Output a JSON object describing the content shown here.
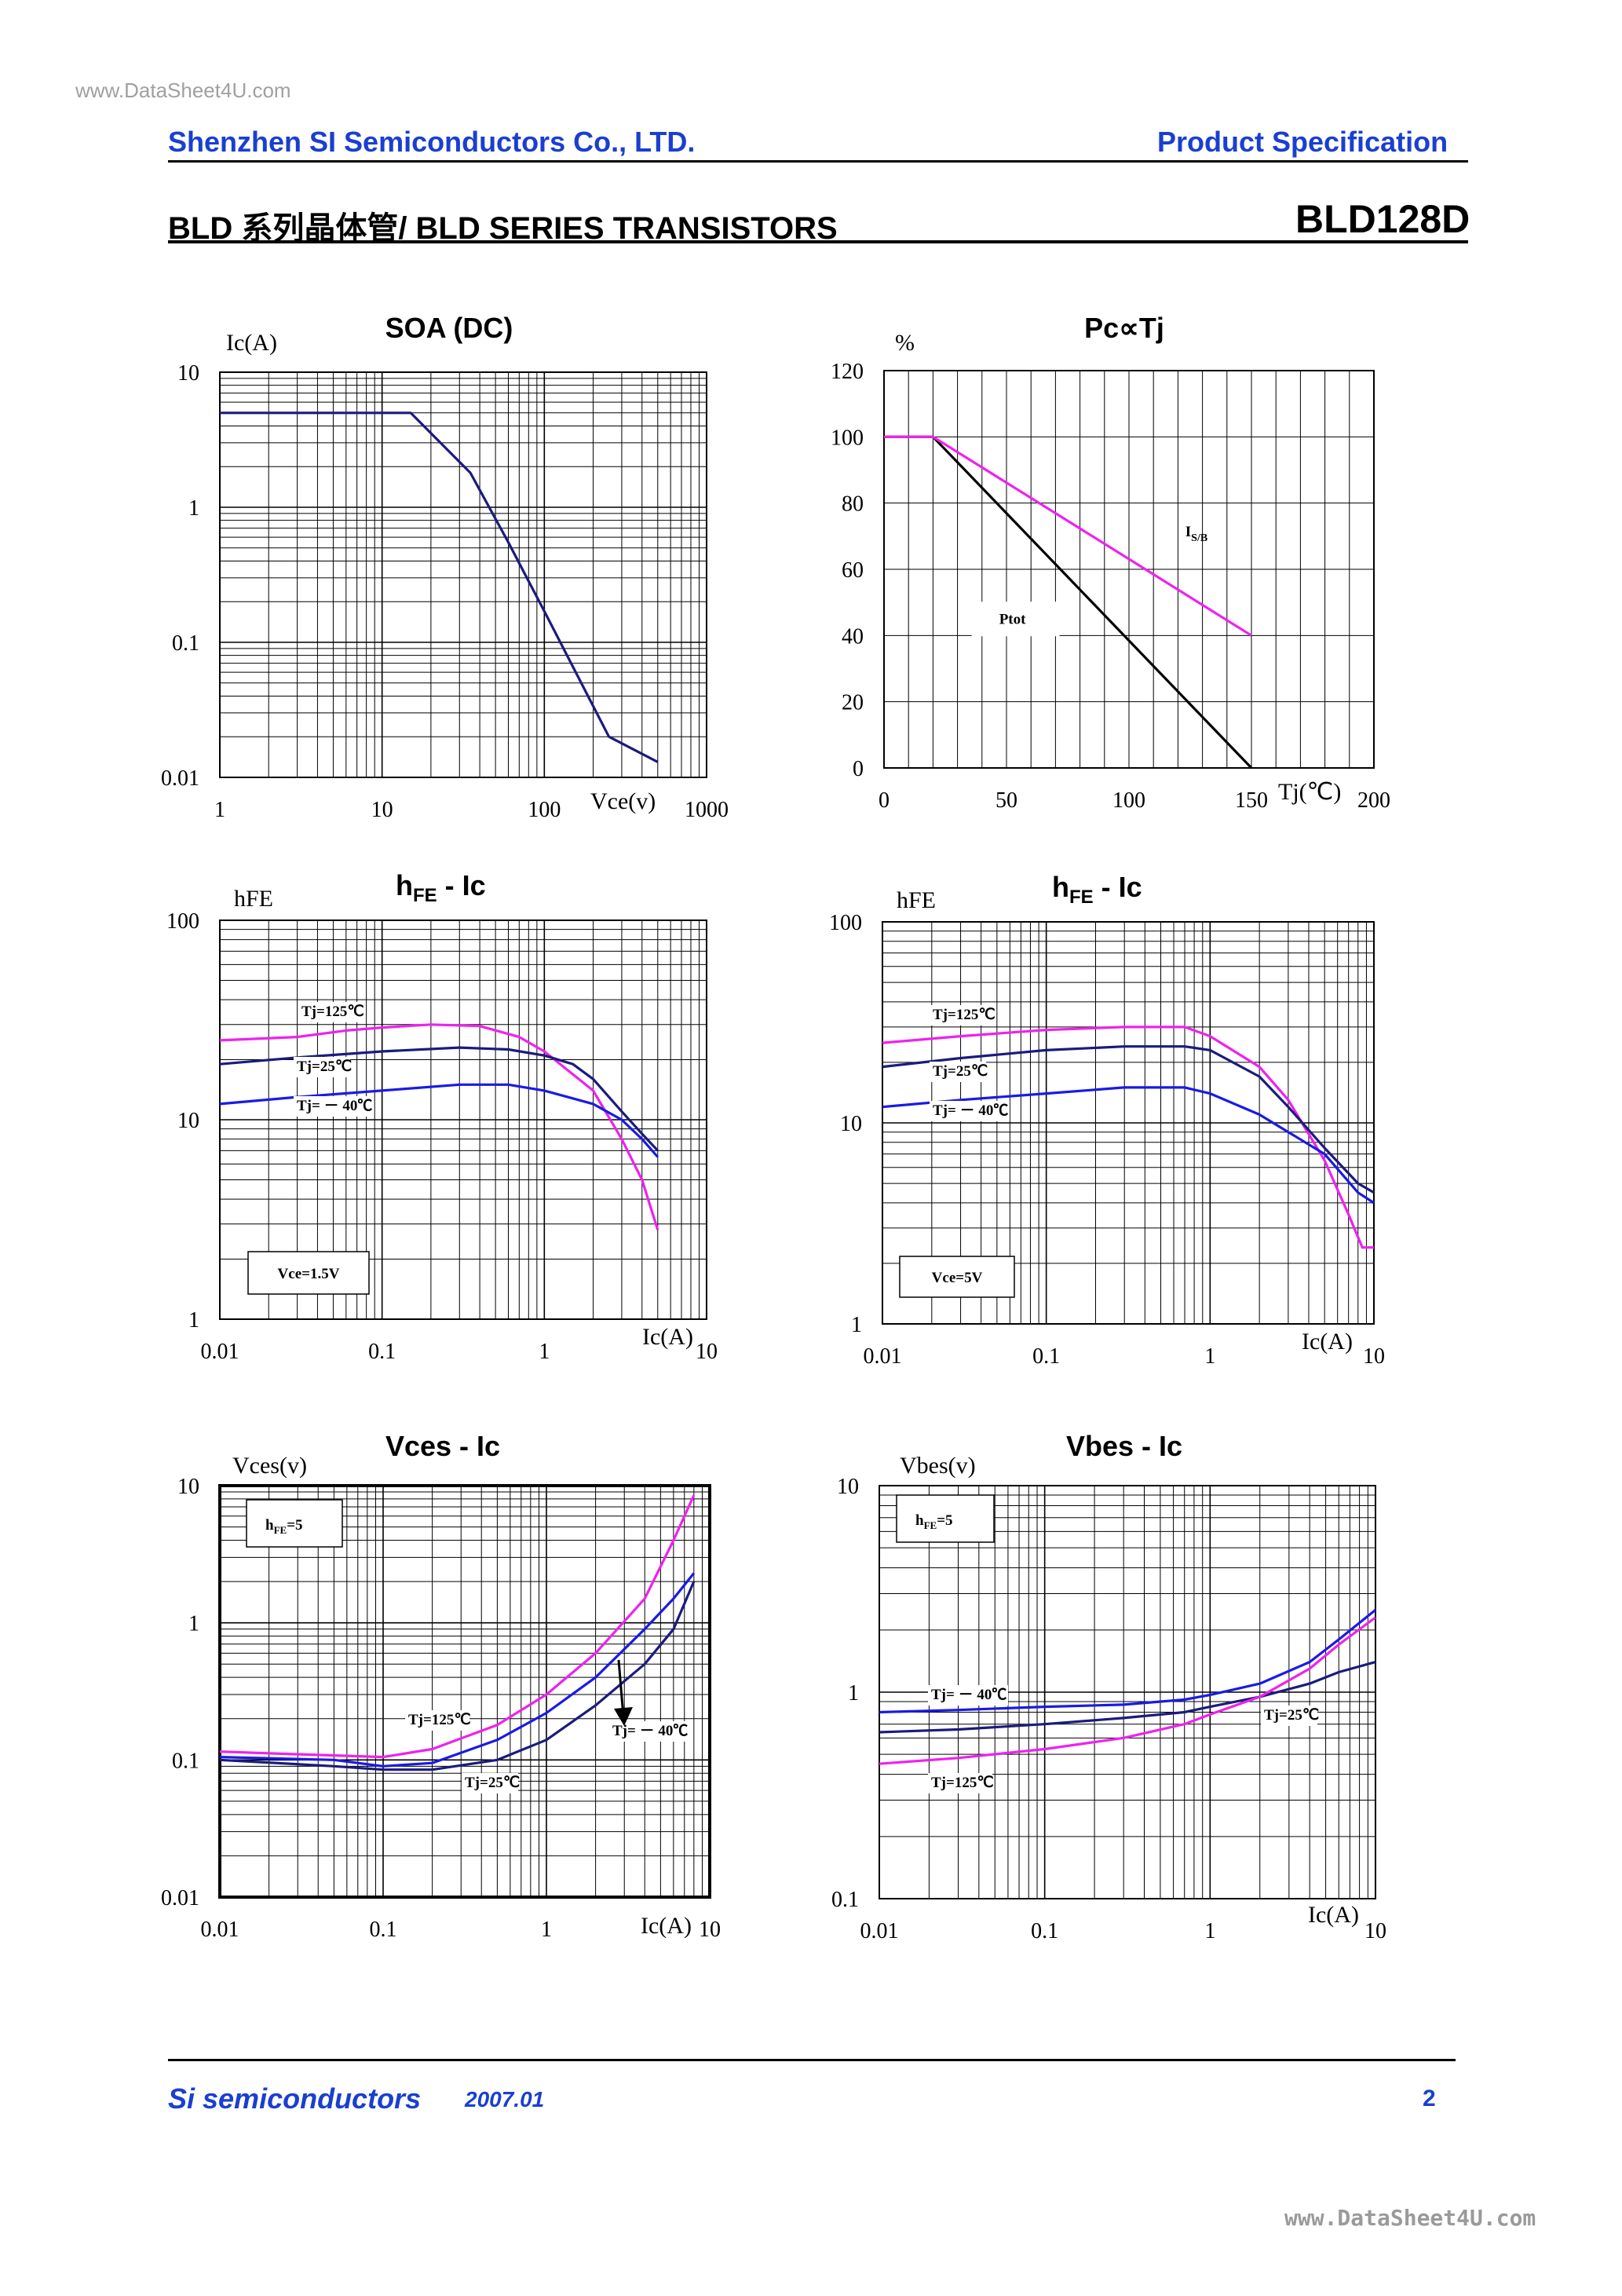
{
  "header": {
    "watermark_top": "www.DataSheet4U.com",
    "company": "Shenzhen SI Semiconductors Co., LTD.",
    "spec_label": "Product Specification",
    "series_title": "BLD 系列晶体管/ BLD SERIES TRANSISTORS",
    "part_number": "BLD128D"
  },
  "footer": {
    "company": "Si semiconductors",
    "date": "2007.01",
    "page": "2",
    "watermark_bottom": "www.DataSheet4U.com"
  },
  "colors": {
    "navy": "#1b1b7e",
    "blue": "#1a1ae6",
    "magenta": "#ee22ee",
    "black": "#000000",
    "brand": "#1a3fd0"
  },
  "chart_data": [
    {
      "type": "line",
      "id": "soa",
      "title": "SOA (DC)",
      "scale": "loglog",
      "ylabel": "Ic(A)",
      "xlabel": "Vce(v)",
      "xlim": [
        1,
        1000
      ],
      "ylim": [
        0.01,
        10
      ],
      "xticks": [
        1,
        10,
        100,
        1000
      ],
      "xtick_labels": [
        "1",
        "10",
        "100",
        "1000"
      ],
      "yticks": [
        0.01,
        0.1,
        1,
        10
      ],
      "ytick_labels": [
        "0.01",
        "0.1",
        "1",
        "10"
      ],
      "series": [
        {
          "name": "SOA",
          "color": "navy",
          "points": [
            [
              1,
              5
            ],
            [
              15,
              5
            ],
            [
              35,
              1.8
            ],
            [
              60,
              0.55
            ],
            [
              100,
              0.17
            ],
            [
              250,
              0.02
            ],
            [
              500,
              0.013
            ]
          ]
        }
      ]
    },
    {
      "type": "line",
      "id": "pc",
      "title": "Pc∝Tj",
      "scale": "linear",
      "ylabel": "%",
      "xlabel": "Tj(℃)",
      "xlim": [
        0,
        200
      ],
      "ylim": [
        0,
        120
      ],
      "xticks": [
        0,
        50,
        100,
        150,
        200
      ],
      "xtick_labels": [
        "0",
        "50",
        "100",
        "150",
        "200"
      ],
      "yticks": [
        0,
        20,
        40,
        60,
        80,
        100,
        120
      ],
      "ytick_labels": [
        "0",
        "20",
        "40",
        "60",
        "80",
        "100",
        "120"
      ],
      "series": [
        {
          "name": "Ptot",
          "color": "black",
          "points": [
            [
              0,
              100
            ],
            [
              20,
              100
            ],
            [
              150,
              0
            ]
          ]
        },
        {
          "name": "I_S/B",
          "color": "magenta",
          "points": [
            [
              0,
              100
            ],
            [
              20,
              100
            ],
            [
              150,
              40
            ]
          ]
        }
      ],
      "annotations": [
        {
          "text": "Ptot",
          "x": 55,
          "y": 45
        },
        {
          "text": "IS/B",
          "x": 123,
          "y": 70,
          "sub": "S/B",
          "main": "I"
        }
      ]
    },
    {
      "type": "line",
      "id": "hfe1",
      "title": "hFE - Ic",
      "scale": "loglog",
      "ylabel": "hFE",
      "xlabel": "Ic(A)",
      "xlim": [
        0.01,
        10
      ],
      "ylim": [
        1,
        100
      ],
      "xticks": [
        0.01,
        0.1,
        1,
        10
      ],
      "xtick_labels": [
        "0.01",
        "0.1",
        "1",
        "10"
      ],
      "yticks": [
        1,
        10,
        100
      ],
      "ytick_labels": [
        "1",
        "10",
        "100"
      ],
      "series": [
        {
          "name": "Tj=125℃",
          "color": "magenta",
          "points": [
            [
              0.01,
              25
            ],
            [
              0.03,
              26
            ],
            [
              0.06,
              28
            ],
            [
              0.1,
              29
            ],
            [
              0.2,
              30
            ],
            [
              0.4,
              29.5
            ],
            [
              0.7,
              26
            ],
            [
              1,
              22
            ],
            [
              2,
              14
            ],
            [
              3,
              8
            ],
            [
              4,
              5
            ],
            [
              5,
              2.8
            ]
          ]
        },
        {
          "name": "Tj=25℃",
          "color": "navy",
          "points": [
            [
              0.01,
              19
            ],
            [
              0.03,
              20.5
            ],
            [
              0.1,
              22
            ],
            [
              0.3,
              23
            ],
            [
              0.6,
              22.5
            ],
            [
              1,
              21
            ],
            [
              1.5,
              19
            ],
            [
              2,
              16
            ],
            [
              3,
              11
            ],
            [
              4,
              8.5
            ],
            [
              5,
              7
            ]
          ]
        },
        {
          "name": "Tj=-40℃",
          "color": "blue",
          "points": [
            [
              0.01,
              12
            ],
            [
              0.03,
              13
            ],
            [
              0.1,
              14
            ],
            [
              0.3,
              15
            ],
            [
              0.6,
              15
            ],
            [
              1,
              14
            ],
            [
              2,
              12
            ],
            [
              3,
              10
            ],
            [
              4,
              8
            ],
            [
              5,
              6.5
            ]
          ]
        }
      ],
      "labels": [
        "Tj=125℃",
        "Tj=25℃",
        "Tj= － 40℃"
      ],
      "condition": "Vce=1.5V"
    },
    {
      "type": "line",
      "id": "hfe2",
      "title": "hFE - Ic",
      "scale": "loglog",
      "ylabel": "hFE",
      "xlabel": "Ic(A)",
      "xlim": [
        0.01,
        10
      ],
      "ylim": [
        1,
        100
      ],
      "xticks": [
        0.01,
        0.1,
        1,
        10
      ],
      "xtick_labels": [
        "0.01",
        "0.1",
        "1",
        "10"
      ],
      "yticks": [
        1,
        10,
        100
      ],
      "ytick_labels": [
        "1",
        "10",
        "100"
      ],
      "series": [
        {
          "name": "Tj=125℃",
          "color": "magenta",
          "points": [
            [
              0.01,
              25
            ],
            [
              0.03,
              27
            ],
            [
              0.1,
              29
            ],
            [
              0.3,
              30
            ],
            [
              0.7,
              30
            ],
            [
              1,
              27
            ],
            [
              2,
              19
            ],
            [
              3,
              13
            ],
            [
              5,
              6.5
            ],
            [
              7,
              3.5
            ],
            [
              8.5,
              2.4
            ],
            [
              10,
              2.4
            ]
          ]
        },
        {
          "name": "Tj=25℃",
          "color": "navy",
          "points": [
            [
              0.01,
              19
            ],
            [
              0.03,
              21
            ],
            [
              0.1,
              23
            ],
            [
              0.3,
              24
            ],
            [
              0.7,
              24
            ],
            [
              1,
              23
            ],
            [
              2,
              17
            ],
            [
              3,
              12
            ],
            [
              5,
              7.5
            ],
            [
              8,
              5
            ],
            [
              10,
              4.5
            ]
          ]
        },
        {
          "name": "Tj=-40℃",
          "color": "blue",
          "points": [
            [
              0.01,
              12
            ],
            [
              0.03,
              13
            ],
            [
              0.1,
              14
            ],
            [
              0.3,
              15
            ],
            [
              0.7,
              15
            ],
            [
              1,
              14
            ],
            [
              2,
              11
            ],
            [
              3,
              9
            ],
            [
              5,
              7
            ],
            [
              8,
              4.5
            ],
            [
              10,
              4
            ]
          ]
        }
      ],
      "labels": [
        "Tj=125℃",
        "Tj=25℃",
        "Tj= － 40℃"
      ],
      "condition": "Vce=5V"
    },
    {
      "type": "line",
      "id": "vces",
      "title": "Vces - Ic",
      "scale": "loglog",
      "ylabel": "Vces(v)",
      "xlabel": "Ic(A)",
      "xlim": [
        0.01,
        10
      ],
      "ylim": [
        0.01,
        10
      ],
      "xticks": [
        0.01,
        0.1,
        1,
        10
      ],
      "xtick_labels": [
        "0.01",
        "0.1",
        "1",
        "10"
      ],
      "yticks": [
        0.01,
        0.1,
        1,
        10
      ],
      "ytick_labels": [
        "0.01",
        "0.1",
        "1",
        "10"
      ],
      "series": [
        {
          "name": "Tj=125℃",
          "color": "magenta",
          "points": [
            [
              0.01,
              0.115
            ],
            [
              0.03,
              0.11
            ],
            [
              0.1,
              0.105
            ],
            [
              0.2,
              0.12
            ],
            [
              0.5,
              0.18
            ],
            [
              1,
              0.3
            ],
            [
              2,
              0.6
            ],
            [
              4,
              1.5
            ],
            [
              6,
              4
            ],
            [
              8,
              8.5
            ]
          ]
        },
        {
          "name": "Tj=-40℃",
          "color": "blue",
          "points": [
            [
              0.01,
              0.105
            ],
            [
              0.05,
              0.1
            ],
            [
              0.1,
              0.09
            ],
            [
              0.2,
              0.095
            ],
            [
              0.5,
              0.14
            ],
            [
              1,
              0.22
            ],
            [
              2,
              0.4
            ],
            [
              4,
              0.9
            ],
            [
              6,
              1.5
            ],
            [
              8,
              2.3
            ]
          ]
        },
        {
          "name": "Tj=25℃",
          "color": "navy",
          "points": [
            [
              0.01,
              0.1
            ],
            [
              0.05,
              0.09
            ],
            [
              0.1,
              0.085
            ],
            [
              0.2,
              0.085
            ],
            [
              0.5,
              0.1
            ],
            [
              1,
              0.14
            ],
            [
              2,
              0.25
            ],
            [
              4,
              0.5
            ],
            [
              6,
              0.9
            ],
            [
              8,
              2
            ]
          ]
        }
      ],
      "labels": [
        "Tj=125℃",
        "Tj=25℃",
        "Tj= － 40℃"
      ],
      "condition": "hFE=5"
    },
    {
      "type": "line",
      "id": "vbes",
      "title": "Vbes - Ic",
      "scale": "loglog",
      "ylabel": "Vbes(v)",
      "xlabel": "Ic(A)",
      "xlim": [
        0.01,
        10
      ],
      "ylim": [
        0.1,
        10
      ],
      "xticks": [
        0.01,
        0.1,
        1,
        10
      ],
      "xtick_labels": [
        "0.01",
        "0.1",
        "1",
        "10"
      ],
      "yticks": [
        0.1,
        1,
        10
      ],
      "ytick_labels": [
        "0.1",
        "1",
        "10"
      ],
      "series": [
        {
          "name": "Tj=-40℃",
          "color": "blue",
          "points": [
            [
              0.01,
              0.8
            ],
            [
              0.03,
              0.82
            ],
            [
              0.1,
              0.85
            ],
            [
              0.3,
              0.87
            ],
            [
              0.7,
              0.92
            ],
            [
              1,
              0.97
            ],
            [
              2,
              1.1
            ],
            [
              4,
              1.4
            ],
            [
              6,
              1.8
            ],
            [
              10,
              2.5
            ]
          ]
        },
        {
          "name": "Tj=25℃",
          "color": "navy",
          "points": [
            [
              0.01,
              0.64
            ],
            [
              0.03,
              0.66
            ],
            [
              0.1,
              0.7
            ],
            [
              0.3,
              0.75
            ],
            [
              0.7,
              0.8
            ],
            [
              1,
              0.85
            ],
            [
              2,
              0.95
            ],
            [
              4,
              1.1
            ],
            [
              6,
              1.25
            ],
            [
              10,
              1.4
            ]
          ]
        },
        {
          "name": "Tj=125℃",
          "color": "magenta",
          "points": [
            [
              0.01,
              0.45
            ],
            [
              0.03,
              0.48
            ],
            [
              0.1,
              0.53
            ],
            [
              0.3,
              0.6
            ],
            [
              0.7,
              0.7
            ],
            [
              1,
              0.78
            ],
            [
              2,
              0.95
            ],
            [
              4,
              1.3
            ],
            [
              6,
              1.7
            ],
            [
              10,
              2.3
            ]
          ]
        }
      ],
      "labels": [
        "Tj= － 40℃",
        "Tj=25℃",
        "Tj=125℃"
      ],
      "condition": "hFE=5"
    }
  ]
}
